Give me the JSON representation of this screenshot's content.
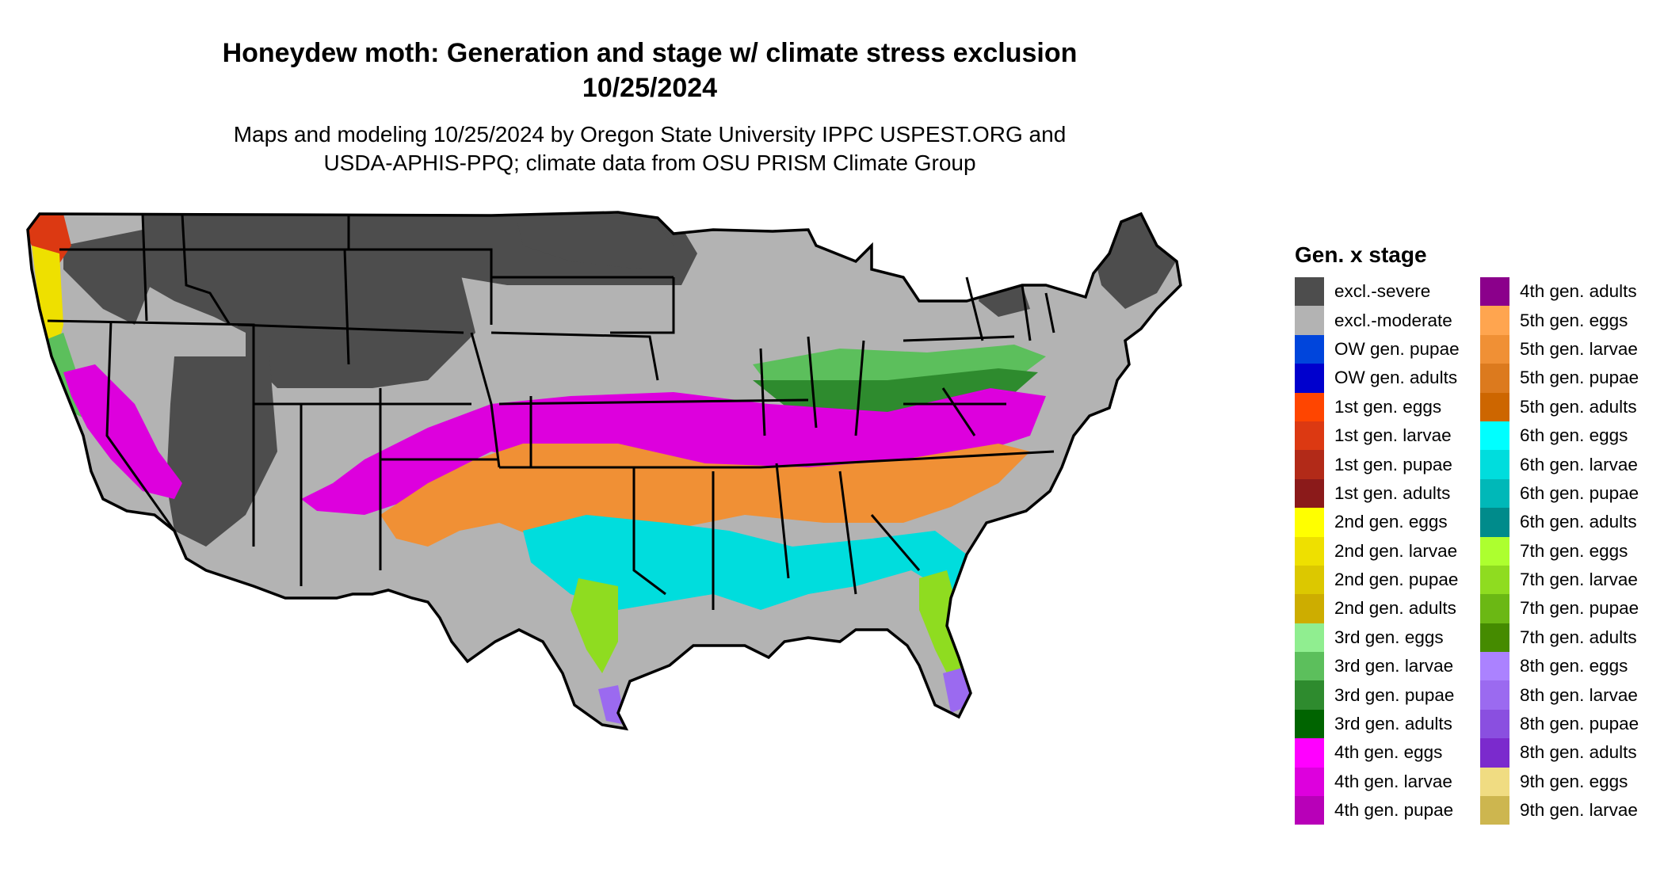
{
  "title": {
    "line1": "Honeydew moth: Generation and stage w/ climate stress exclusion",
    "line2": "10/25/2024"
  },
  "subtitle": {
    "line1": "Maps and modeling 10/25/2024 by Oregon State University IPPC USPEST.ORG and",
    "line2": "USDA-APHIS-PPQ; climate data from OSU PRISM Climate Group"
  },
  "legend": {
    "title": "Gen. x stage",
    "columns": [
      [
        {
          "label": "excl.-severe",
          "color": "#4d4d4d"
        },
        {
          "label": "excl.-moderate",
          "color": "#b3b3b3"
        },
        {
          "label": "OW gen. pupae",
          "color": "#0045dc"
        },
        {
          "label": "OW gen. adults",
          "color": "#0000cd"
        },
        {
          "label": "1st gen. eggs",
          "color": "#ff4500"
        },
        {
          "label": "1st gen. larvae",
          "color": "#dc3912"
        },
        {
          "label": "1st gen. pupae",
          "color": "#b22a18"
        },
        {
          "label": "1st gen. adults",
          "color": "#8b1a1a"
        },
        {
          "label": "2nd gen. eggs",
          "color": "#ffff00"
        },
        {
          "label": "2nd gen. larvae",
          "color": "#eee000"
        },
        {
          "label": "2nd gen. pupae",
          "color": "#dcc800"
        },
        {
          "label": "2nd gen. adults",
          "color": "#cdad00"
        },
        {
          "label": "3rd gen. eggs",
          "color": "#90ee90"
        },
        {
          "label": "3rd gen. larvae",
          "color": "#5cbf5c"
        },
        {
          "label": "3rd gen. pupae",
          "color": "#2e8b2e"
        },
        {
          "label": "3rd gen. adults",
          "color": "#006400"
        },
        {
          "label": "4th gen. eggs",
          "color": "#ff00ff"
        },
        {
          "label": "4th gen. larvae",
          "color": "#dd00dd"
        },
        {
          "label": "4th gen. pupae",
          "color": "#b800b8"
        }
      ],
      [
        {
          "label": "4th gen. adults",
          "color": "#8b008b"
        },
        {
          "label": "5th gen. eggs",
          "color": "#ffa54f"
        },
        {
          "label": "5th gen. larvae",
          "color": "#f09035"
        },
        {
          "label": "5th gen. pupae",
          "color": "#dc7a1e"
        },
        {
          "label": "5th gen. adults",
          "color": "#cd6600"
        },
        {
          "label": "6th gen. eggs",
          "color": "#00ffff"
        },
        {
          "label": "6th gen. larvae",
          "color": "#00dddd"
        },
        {
          "label": "6th gen. pupae",
          "color": "#00b8b8"
        },
        {
          "label": "6th gen. adults",
          "color": "#008b8b"
        },
        {
          "label": "7th gen. eggs",
          "color": "#adff2f"
        },
        {
          "label": "7th gen. larvae",
          "color": "#8fdc20"
        },
        {
          "label": "7th gen. pupae",
          "color": "#6bb814"
        },
        {
          "label": "7th gen. adults",
          "color": "#458b00"
        },
        {
          "label": "8th gen. eggs",
          "color": "#ab82ff"
        },
        {
          "label": "8th gen. larvae",
          "color": "#9b6af0"
        },
        {
          "label": "8th gen. pupae",
          "color": "#8a4fe0"
        },
        {
          "label": "8th gen. adults",
          "color": "#7b2acd"
        },
        {
          "label": "9th gen. eggs",
          "color": "#f0dc82"
        },
        {
          "label": "9th gen. larvae",
          "color": "#cdb64f"
        }
      ]
    ]
  },
  "map_colors": {
    "severe": "#4d4d4d",
    "moderate": "#b3b3b3",
    "west_coast_red": "#dc3912",
    "west_coast_yellow": "#eee000",
    "third_gen_green": "#2e8b2e",
    "third_gen_light": "#5cbf5c",
    "fourth_gen": "#dd00dd",
    "fifth_gen": "#f09035",
    "sixth_gen": "#00dddd",
    "seventh_gen": "#8fdc20",
    "eighth_gen": "#9b6af0"
  }
}
